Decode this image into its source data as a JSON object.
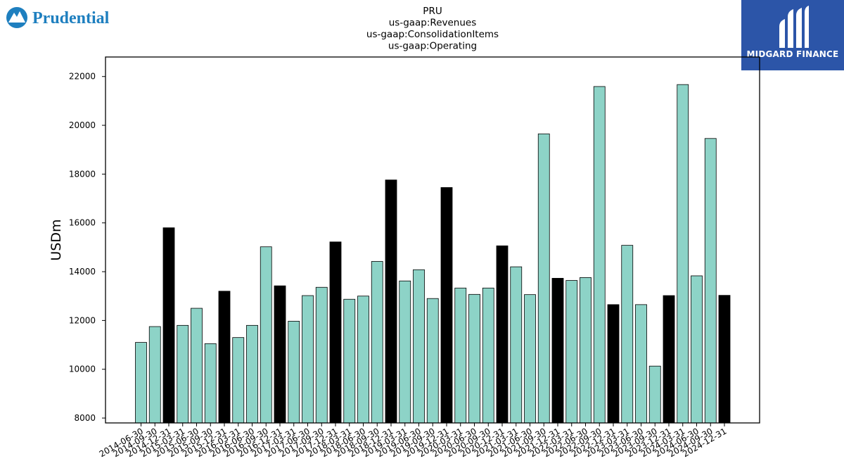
{
  "brand": {
    "name": "Prudential"
  },
  "watermark": {
    "name": "MIDGARD FINANCE"
  },
  "chart_data": {
    "type": "bar",
    "title_lines": [
      "PRU",
      "us-gaap:Revenues",
      "us-gaap:ConsolidationItems",
      "us-gaap:Operating"
    ],
    "xlabel": "",
    "ylabel": "USDm",
    "ylim": [
      7800,
      22800
    ],
    "yticks": [
      8000,
      10000,
      12000,
      14000,
      16000,
      18000,
      20000,
      22000
    ],
    "grid": false,
    "colors": {
      "quarter": "#8dd3c7",
      "year_end": "#000000",
      "edge": "#000000"
    },
    "categories": [
      "2014-06-30",
      "2014-09-30",
      "2014-12-31",
      "2015-03-31",
      "2015-06-30",
      "2015-09-30",
      "2015-12-31",
      "2016-03-31",
      "2016-06-30",
      "2016-09-30",
      "2016-12-31",
      "2017-03-31",
      "2017-06-30",
      "2017-09-30",
      "2017-12-31",
      "2018-03-31",
      "2018-06-30",
      "2018-09-30",
      "2018-12-31",
      "2019-03-31",
      "2019-06-30",
      "2019-09-30",
      "2019-12-31",
      "2020-03-31",
      "2020-06-30",
      "2020-09-30",
      "2020-12-31",
      "2021-03-31",
      "2021-06-30",
      "2021-09-30",
      "2021-12-31",
      "2022-03-31",
      "2022-06-30",
      "2022-09-30",
      "2022-12-31",
      "2023-03-31",
      "2023-06-30",
      "2023-09-30",
      "2023-12-31",
      "2024-03-31",
      "2024-06-30",
      "2024-09-30",
      "2024-12-31"
    ],
    "values": [
      11100,
      11750,
      15800,
      11800,
      12500,
      11050,
      13200,
      11300,
      11800,
      15020,
      13420,
      11970,
      13020,
      13360,
      15220,
      12870,
      13000,
      14420,
      17760,
      13620,
      14080,
      12900,
      17450,
      13330,
      13070,
      13330,
      15060,
      14200,
      13060,
      19650,
      13730,
      13640,
      13760,
      21590,
      12650,
      15080,
      12650,
      10130,
      13020,
      21670,
      13830,
      19460,
      13030
    ]
  }
}
